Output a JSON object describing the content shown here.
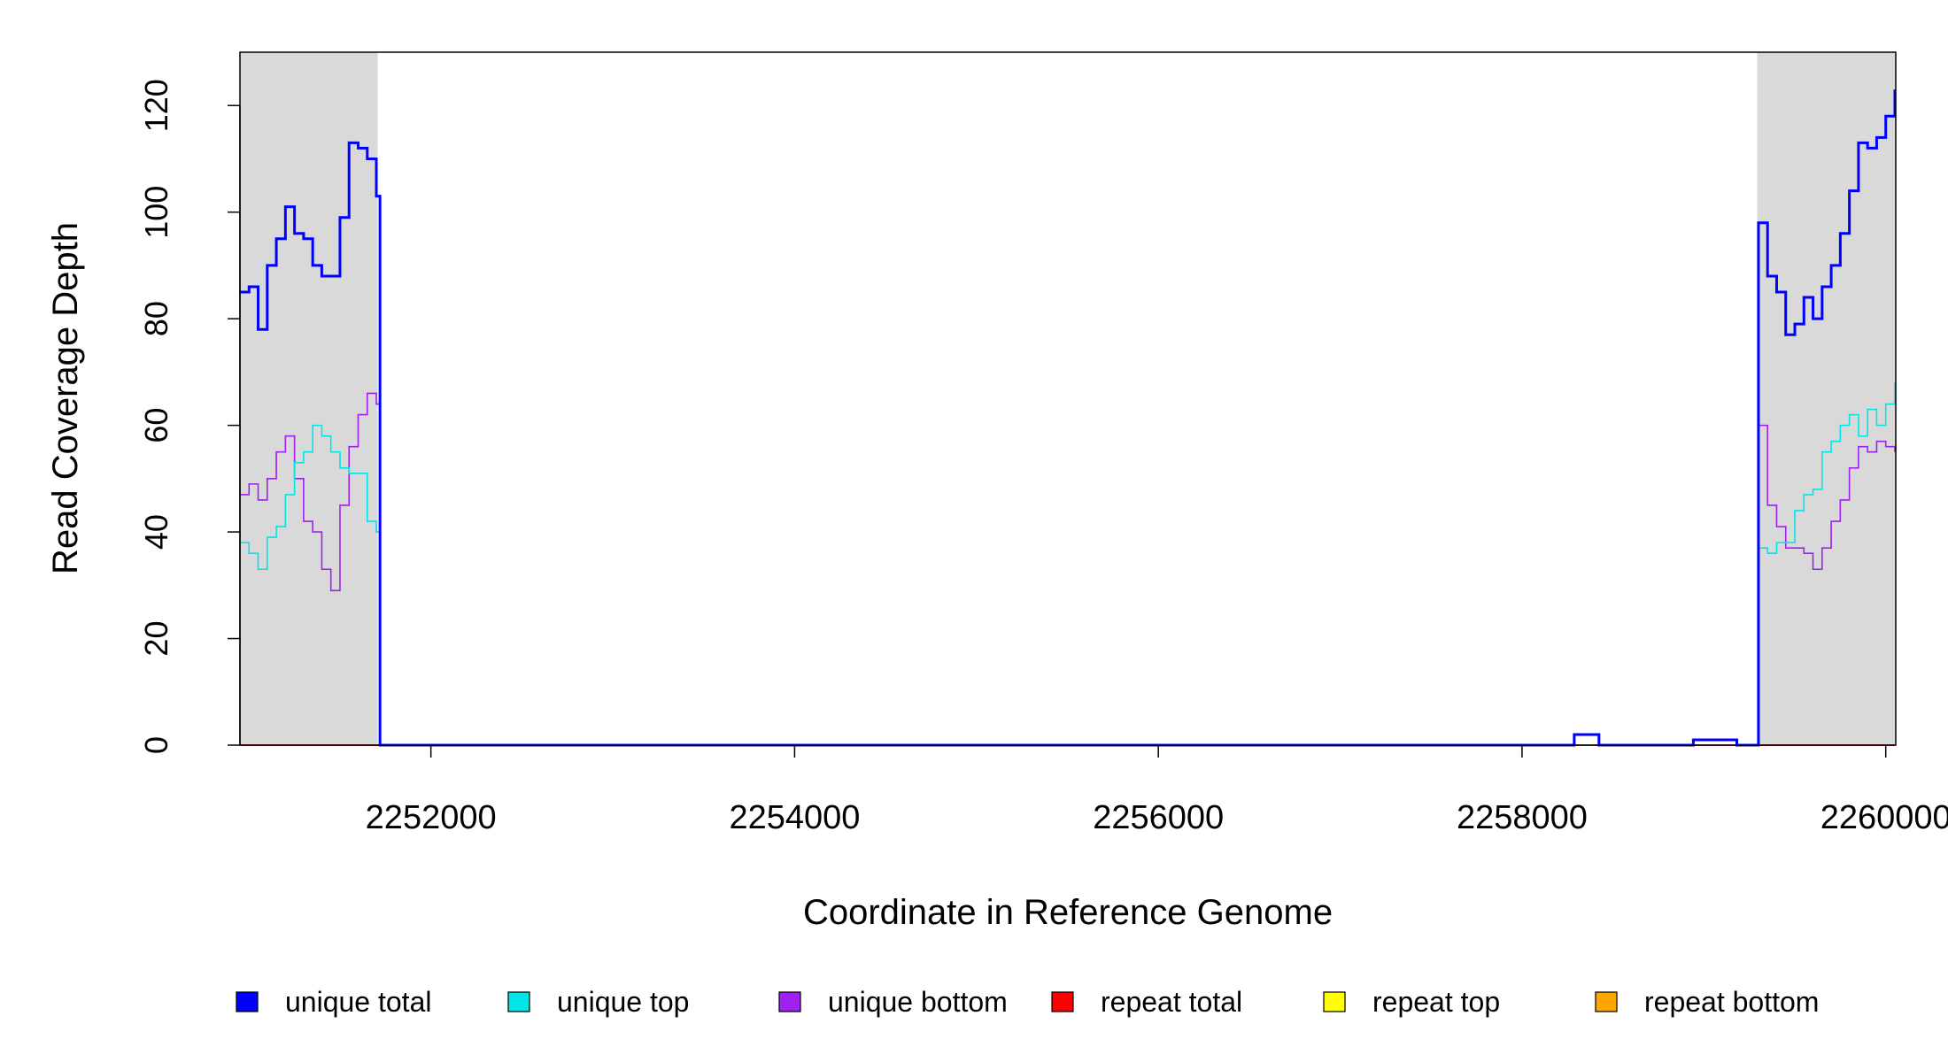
{
  "chart_data": {
    "type": "step",
    "x_label": "Coordinate in Reference Genome",
    "y_label": "Read Coverage Depth",
    "xlim": [
      2250950,
      2260055
    ],
    "ylim": [
      0,
      130
    ],
    "xticks": [
      2252000,
      2254000,
      2256000,
      2258000,
      2260000
    ],
    "yticks": [
      0,
      20,
      40,
      60,
      80,
      100,
      120
    ],
    "highlight_color": "#d9d9d9",
    "highlight_ranges": [
      [
        2250950,
        2251707
      ],
      [
        2259293,
        2260055
      ]
    ],
    "x": [
      2250950,
      2251000,
      2251050,
      2251100,
      2251150,
      2251200,
      2251250,
      2251300,
      2251350,
      2251400,
      2251450,
      2251500,
      2251550,
      2251600,
      2251650,
      2251700,
      2251720,
      2258287,
      2258423,
      2258942,
      2259181,
      2259300,
      2259350,
      2259400,
      2259450,
      2259500,
      2259550,
      2259600,
      2259650,
      2259700,
      2259750,
      2259800,
      2259850,
      2259900,
      2259950,
      2260000,
      2260050
    ],
    "series": [
      {
        "name": "unique total",
        "color": "#0000ff",
        "width": 3,
        "values": [
          85,
          86,
          78,
          90,
          95,
          101,
          96,
          95,
          90,
          88,
          88,
          99,
          113,
          112,
          110,
          103,
          0,
          2,
          0,
          1,
          0,
          98,
          88,
          85,
          77,
          79,
          84,
          80,
          86,
          90,
          96,
          104,
          113,
          112,
          114,
          118,
          123
        ]
      },
      {
        "name": "unique top",
        "color": "#00e5e5",
        "width": 1.6,
        "values": [
          38,
          36,
          33,
          39,
          41,
          47,
          53,
          55,
          60,
          58,
          55,
          52,
          51,
          51,
          42,
          40,
          0,
          0,
          0,
          1,
          0,
          37,
          36,
          38,
          38,
          44,
          47,
          48,
          55,
          57,
          60,
          62,
          58,
          63,
          60,
          64,
          68
        ]
      },
      {
        "name": "unique bottom",
        "color": "#a020f0",
        "width": 1.6,
        "values": [
          47,
          49,
          46,
          50,
          55,
          58,
          50,
          42,
          40,
          33,
          29,
          45,
          56,
          62,
          66,
          64,
          0,
          2,
          0,
          0,
          0,
          60,
          45,
          41,
          37,
          37,
          36,
          33,
          37,
          42,
          46,
          52,
          56,
          55,
          57,
          56,
          55
        ]
      },
      {
        "name": "repeat total",
        "color": "#ff0000",
        "width": 2,
        "values": [
          0,
          0,
          0,
          0,
          0,
          0,
          0,
          0,
          0,
          0,
          0,
          0,
          0,
          0,
          0,
          0,
          0,
          0,
          0,
          0,
          0,
          0,
          0,
          0,
          0,
          0,
          0,
          0,
          0,
          0,
          0,
          0,
          0,
          0,
          0,
          0,
          0
        ]
      },
      {
        "name": "repeat top",
        "color": "#ffff00",
        "width": 2,
        "values": [
          0,
          0,
          0,
          0,
          0,
          0,
          0,
          0,
          0,
          0,
          0,
          0,
          0,
          0,
          0,
          0,
          0,
          0,
          0,
          0,
          0,
          0,
          0,
          0,
          0,
          0,
          0,
          0,
          0,
          0,
          0,
          0,
          0,
          0,
          0,
          0,
          0
        ]
      },
      {
        "name": "repeat bottom",
        "color": "#ffa500",
        "width": 2,
        "values": [
          0,
          0,
          0,
          0,
          0,
          0,
          0,
          0,
          0,
          0,
          0,
          0,
          0,
          0,
          0,
          0,
          0,
          0,
          0,
          0,
          0,
          0,
          0,
          0,
          0,
          0,
          0,
          0,
          0,
          0,
          0,
          0,
          0,
          0,
          0,
          0,
          0
        ]
      }
    ]
  }
}
